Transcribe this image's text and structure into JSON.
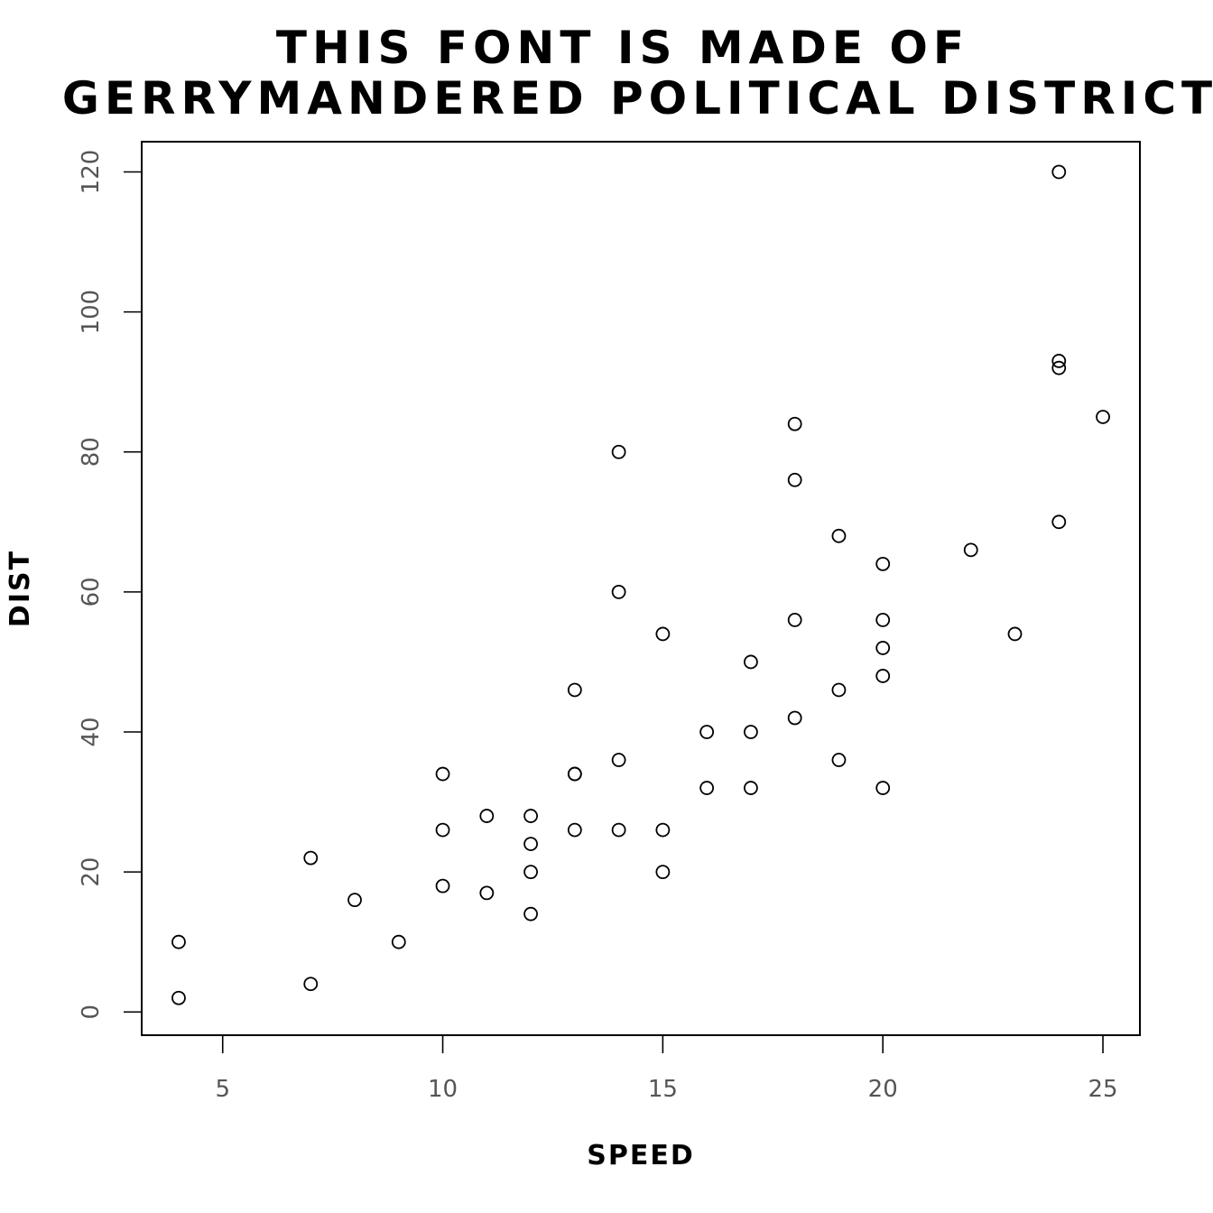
{
  "chart_data": {
    "type": "scatter",
    "title": [
      "THIS FONT IS MADE OF",
      "GERRYMANDERED POLITICAL DISTRICTS"
    ],
    "xlabel": "SPEED",
    "ylabel": "DIST",
    "xlim": [
      3.16,
      25.84
    ],
    "ylim": [
      -3.32,
      124.32
    ],
    "xticks": [
      5,
      10,
      15,
      20,
      25
    ],
    "yticks": [
      0,
      20,
      40,
      60,
      80,
      100,
      120
    ],
    "grid": false,
    "points": [
      {
        "x": 4,
        "y": 2
      },
      {
        "x": 4,
        "y": 10
      },
      {
        "x": 7,
        "y": 4
      },
      {
        "x": 7,
        "y": 22
      },
      {
        "x": 8,
        "y": 16
      },
      {
        "x": 9,
        "y": 10
      },
      {
        "x": 10,
        "y": 18
      },
      {
        "x": 10,
        "y": 26
      },
      {
        "x": 10,
        "y": 34
      },
      {
        "x": 11,
        "y": 17
      },
      {
        "x": 11,
        "y": 28
      },
      {
        "x": 12,
        "y": 14
      },
      {
        "x": 12,
        "y": 20
      },
      {
        "x": 12,
        "y": 24
      },
      {
        "x": 12,
        "y": 28
      },
      {
        "x": 13,
        "y": 26
      },
      {
        "x": 13,
        "y": 34
      },
      {
        "x": 13,
        "y": 34
      },
      {
        "x": 13,
        "y": 46
      },
      {
        "x": 14,
        "y": 26
      },
      {
        "x": 14,
        "y": 36
      },
      {
        "x": 14,
        "y": 60
      },
      {
        "x": 14,
        "y": 80
      },
      {
        "x": 15,
        "y": 20
      },
      {
        "x": 15,
        "y": 26
      },
      {
        "x": 15,
        "y": 54
      },
      {
        "x": 16,
        "y": 32
      },
      {
        "x": 16,
        "y": 40
      },
      {
        "x": 17,
        "y": 32
      },
      {
        "x": 17,
        "y": 40
      },
      {
        "x": 17,
        "y": 50
      },
      {
        "x": 18,
        "y": 42
      },
      {
        "x": 18,
        "y": 56
      },
      {
        "x": 18,
        "y": 76
      },
      {
        "x": 18,
        "y": 84
      },
      {
        "x": 19,
        "y": 36
      },
      {
        "x": 19,
        "y": 46
      },
      {
        "x": 19,
        "y": 68
      },
      {
        "x": 20,
        "y": 32
      },
      {
        "x": 20,
        "y": 48
      },
      {
        "x": 20,
        "y": 52
      },
      {
        "x": 20,
        "y": 56
      },
      {
        "x": 20,
        "y": 64
      },
      {
        "x": 22,
        "y": 66
      },
      {
        "x": 23,
        "y": 54
      },
      {
        "x": 24,
        "y": 70
      },
      {
        "x": 24,
        "y": 92
      },
      {
        "x": 24,
        "y": 93
      },
      {
        "x": 24,
        "y": 120
      },
      {
        "x": 25,
        "y": 85
      }
    ]
  }
}
